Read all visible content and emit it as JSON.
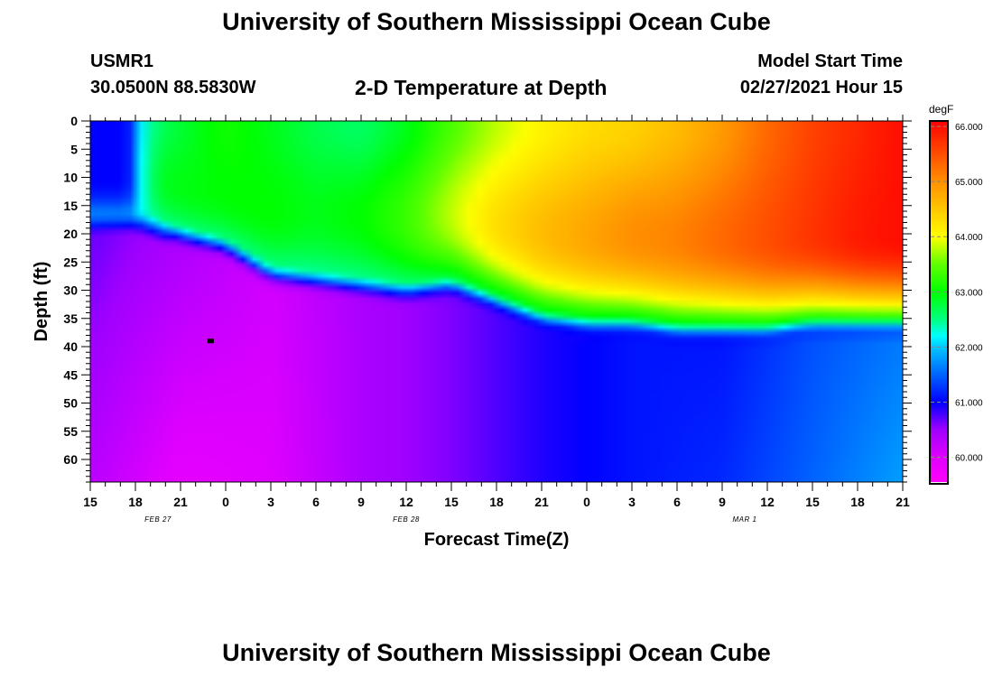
{
  "header": {
    "title": "University of Southern Mississippi Ocean Cube",
    "station": "USMR1",
    "coords": "30.0500N 88.5830W",
    "subtitle": "2-D Temperature at Depth",
    "model_start_label": "Model Start Time",
    "model_start_value": "02/27/2021 Hour 15"
  },
  "footer": {
    "title": "University of Southern Mississippi Ocean Cube"
  },
  "chart_data": {
    "type": "heatmap",
    "title": "2-D Temperature at Depth",
    "xlabel": "Forecast Time(Z)",
    "ylabel": "Depth (ft)",
    "x_unit": "forecast hours from 02/27/2021 15Z",
    "xlim": [
      0,
      54
    ],
    "ylim": [
      0,
      64
    ],
    "x_ticks": [
      {
        "h": 0,
        "label": "15"
      },
      {
        "h": 3,
        "label": "18"
      },
      {
        "h": 6,
        "label": "21"
      },
      {
        "h": 9,
        "label": "0"
      },
      {
        "h": 12,
        "label": "3"
      },
      {
        "h": 15,
        "label": "6"
      },
      {
        "h": 18,
        "label": "9"
      },
      {
        "h": 21,
        "label": "12"
      },
      {
        "h": 24,
        "label": "15"
      },
      {
        "h": 27,
        "label": "18"
      },
      {
        "h": 30,
        "label": "21"
      },
      {
        "h": 33,
        "label": "0"
      },
      {
        "h": 36,
        "label": "3"
      },
      {
        "h": 39,
        "label": "6"
      },
      {
        "h": 42,
        "label": "9"
      },
      {
        "h": 45,
        "label": "12"
      },
      {
        "h": 48,
        "label": "15"
      },
      {
        "h": 51,
        "label": "18"
      },
      {
        "h": 54,
        "label": "21"
      }
    ],
    "date_labels": [
      {
        "h": 4.5,
        "label": "FEB 27"
      },
      {
        "h": 21,
        "label": "FEB 28"
      },
      {
        "h": 43.5,
        "label": "MAR 1"
      }
    ],
    "y_ticks": [
      "0",
      "5",
      "10",
      "15",
      "20",
      "25",
      "30",
      "35",
      "40",
      "45",
      "50",
      "55",
      "60"
    ],
    "colorbar": {
      "unit": "degF",
      "range": [
        59.55,
        66.1
      ],
      "ticks": [
        "60.000",
        "61.000",
        "62.000",
        "63.000",
        "64.000",
        "65.000",
        "66.000"
      ],
      "stops": [
        {
          "v": 59.55,
          "color": "#ff00ff"
        },
        {
          "v": 60.0,
          "color": "#e000ff"
        },
        {
          "v": 60.5,
          "color": "#a000ff"
        },
        {
          "v": 61.0,
          "color": "#0000ff"
        },
        {
          "v": 61.5,
          "color": "#0064ff"
        },
        {
          "v": 62.0,
          "color": "#00c8ff"
        },
        {
          "v": 62.2,
          "color": "#00ffff"
        },
        {
          "v": 62.5,
          "color": "#00ff80"
        },
        {
          "v": 63.0,
          "color": "#00ff00"
        },
        {
          "v": 63.5,
          "color": "#60ff00"
        },
        {
          "v": 64.0,
          "color": "#ffff00"
        },
        {
          "v": 65.0,
          "color": "#ff9000"
        },
        {
          "v": 66.1,
          "color": "#ff0000"
        }
      ]
    },
    "marker": {
      "hour": 8,
      "depth": 39
    },
    "upper_layer": {
      "interface_depth": [
        {
          "h": 0,
          "d": 18
        },
        {
          "h": 3,
          "d": 18
        },
        {
          "h": 6,
          "d": 21
        },
        {
          "h": 9,
          "d": 23
        },
        {
          "h": 12,
          "d": 28
        },
        {
          "h": 15,
          "d": 29
        },
        {
          "h": 18,
          "d": 30
        },
        {
          "h": 21,
          "d": 31
        },
        {
          "h": 24,
          "d": 30
        },
        {
          "h": 27,
          "d": 33
        },
        {
          "h": 30,
          "d": 36
        },
        {
          "h": 33,
          "d": 37
        },
        {
          "h": 36,
          "d": 37
        },
        {
          "h": 39,
          "d": 38
        },
        {
          "h": 42,
          "d": 38
        },
        {
          "h": 45,
          "d": 38
        },
        {
          "h": 48,
          "d": 37
        },
        {
          "h": 51,
          "d": 37
        },
        {
          "h": 54,
          "d": 37
        }
      ],
      "surface_temp": [
        {
          "h": 0,
          "v": 61.0
        },
        {
          "h": 2.5,
          "v": 61.0
        },
        {
          "h": 3.5,
          "v": 62.3
        },
        {
          "h": 5,
          "v": 62.7
        },
        {
          "h": 9,
          "v": 63.1
        },
        {
          "h": 12,
          "v": 62.9
        },
        {
          "h": 15,
          "v": 62.7
        },
        {
          "h": 18,
          "v": 62.6
        },
        {
          "h": 21,
          "v": 62.9
        },
        {
          "h": 24,
          "v": 63.4
        },
        {
          "h": 27,
          "v": 63.8
        },
        {
          "h": 30,
          "v": 64.1
        },
        {
          "h": 33,
          "v": 64.3
        },
        {
          "h": 36,
          "v": 64.4
        },
        {
          "h": 39,
          "v": 64.6
        },
        {
          "h": 42,
          "v": 64.9
        },
        {
          "h": 45,
          "v": 65.3
        },
        {
          "h": 48,
          "v": 65.6
        },
        {
          "h": 51,
          "v": 65.8
        },
        {
          "h": 54,
          "v": 66.0
        }
      ],
      "core_temp": [
        {
          "h": 0,
          "v": 61.0
        },
        {
          "h": 2.5,
          "v": 61.0
        },
        {
          "h": 3.5,
          "v": 62.4
        },
        {
          "h": 5,
          "v": 62.9
        },
        {
          "h": 9,
          "v": 63.0
        },
        {
          "h": 12,
          "v": 63.0
        },
        {
          "h": 15,
          "v": 62.9
        },
        {
          "h": 18,
          "v": 63.0
        },
        {
          "h": 21,
          "v": 63.3
        },
        {
          "h": 24,
          "v": 63.8
        },
        {
          "h": 27,
          "v": 64.3
        },
        {
          "h": 30,
          "v": 64.6
        },
        {
          "h": 33,
          "v": 64.8
        },
        {
          "h": 36,
          "v": 65.0
        },
        {
          "h": 39,
          "v": 65.1
        },
        {
          "h": 42,
          "v": 65.3
        },
        {
          "h": 45,
          "v": 65.5
        },
        {
          "h": 48,
          "v": 65.7
        },
        {
          "h": 51,
          "v": 65.9
        },
        {
          "h": 54,
          "v": 66.0
        }
      ]
    },
    "lower_layer": {
      "temp_upper": [
        {
          "h": 0,
          "v": 60.7
        },
        {
          "h": 6,
          "v": 60.4
        },
        {
          "h": 12,
          "v": 60.1
        },
        {
          "h": 18,
          "v": 60.4
        },
        {
          "h": 24,
          "v": 60.6
        },
        {
          "h": 30,
          "v": 60.9
        },
        {
          "h": 36,
          "v": 61.1
        },
        {
          "h": 42,
          "v": 61.1
        },
        {
          "h": 48,
          "v": 61.4
        },
        {
          "h": 54,
          "v": 61.6
        }
      ],
      "temp_bottom": [
        {
          "h": 0,
          "v": 60.3
        },
        {
          "h": 6,
          "v": 59.9
        },
        {
          "h": 12,
          "v": 60.0
        },
        {
          "h": 18,
          "v": 60.4
        },
        {
          "h": 24,
          "v": 60.6
        },
        {
          "h": 30,
          "v": 60.9
        },
        {
          "h": 36,
          "v": 61.1
        },
        {
          "h": 42,
          "v": 61.2
        },
        {
          "h": 48,
          "v": 61.5
        },
        {
          "h": 54,
          "v": 61.8
        }
      ]
    }
  }
}
